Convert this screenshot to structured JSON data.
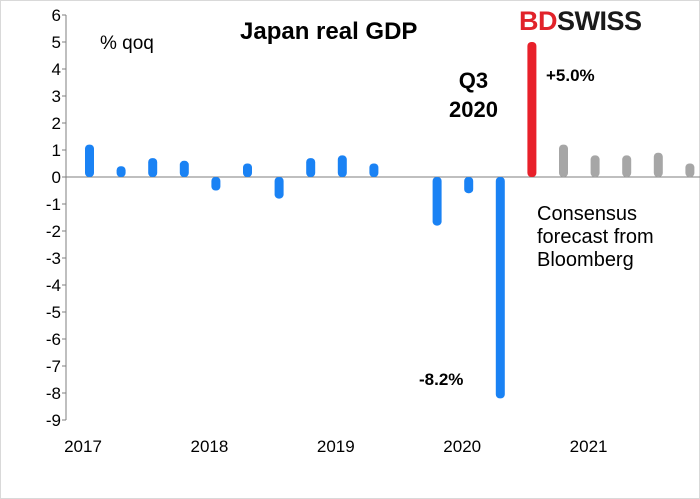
{
  "brand": {
    "part1": "BD",
    "part2": "SWISS"
  },
  "chart_data": {
    "type": "bar",
    "title": "Japan real GDP",
    "unit_label": "% qoq",
    "ylim": [
      -9,
      6
    ],
    "yticks": [
      "6",
      "5",
      "4",
      "3",
      "2",
      "1",
      "0",
      "-1",
      "-2",
      "-3",
      "-4",
      "-5",
      "-6",
      "-7",
      "-8",
      "-9"
    ],
    "xticks": [
      "2017",
      "2018",
      "2019",
      "2020",
      "2021"
    ],
    "colors": {
      "actual": "#1a82f4",
      "highlight": "#e8202a",
      "forecast": "#a6a6a6"
    },
    "series": [
      {
        "kind": "actual",
        "quarters": [
          "2017Q1",
          "2017Q2",
          "2017Q3",
          "2017Q4",
          "2018Q1",
          "2018Q2",
          "2018Q3",
          "2018Q4",
          "2019Q1",
          "2019Q2",
          "2019Q3",
          "2019Q4",
          "2020Q1",
          "2020Q2"
        ],
        "values": [
          1.2,
          0.4,
          0.7,
          0.6,
          -0.5,
          0.5,
          -0.8,
          0.7,
          0.8,
          0.5,
          0.0,
          -1.8,
          -0.6,
          -8.2
        ]
      },
      {
        "kind": "highlight",
        "quarters": [
          "2020Q3"
        ],
        "values": [
          5.0
        ]
      },
      {
        "kind": "forecast",
        "quarters": [
          "2020Q4",
          "2021Q1",
          "2021Q2",
          "2021Q3",
          "2021Q4"
        ],
        "values": [
          1.2,
          0.8,
          0.8,
          0.9,
          0.5
        ]
      }
    ],
    "annotations": {
      "q3_line1": "Q3",
      "q3_line2": "2020",
      "positive": "+5.0%",
      "negative": "-8.2%",
      "consensus_line1": "Consensus",
      "consensus_line2": "forecast from",
      "consensus_line3": "Bloomberg"
    }
  }
}
